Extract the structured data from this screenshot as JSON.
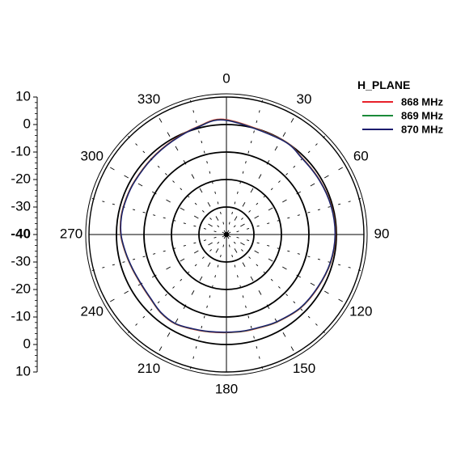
{
  "chart_data": {
    "type": "polar",
    "radial_min": -40,
    "radial_max": 10,
    "radial_step": 10,
    "radial_scale_labels": [
      "10",
      "0",
      "-10",
      "-20",
      "-30",
      "-40",
      "-30",
      "-20",
      "-10",
      "0",
      "10"
    ],
    "angle_labels": [
      "0",
      "30",
      "60",
      "90",
      "120",
      "150",
      "180",
      "210",
      "240",
      "270",
      "300",
      "330"
    ],
    "angle_direction": "clockwise",
    "angle_zero": "top",
    "legend": {
      "title": "H_PLANE",
      "position": "top-right"
    },
    "angles_deg": [
      0,
      30,
      45,
      60,
      75,
      90,
      105,
      120,
      135,
      150,
      160,
      170,
      180,
      190,
      200,
      210,
      220,
      230,
      240,
      250,
      260,
      270,
      280,
      290,
      300,
      315,
      330,
      345
    ],
    "series": [
      {
        "name": "868 MHz",
        "color": "#e8202a",
        "values": [
          1.8,
          0.0,
          -0.8,
          -0.7,
          -0.4,
          -0.3,
          -0.7,
          -1.5,
          -2.0,
          -3.2,
          -4.0,
          -4.2,
          -4.3,
          -4.0,
          -3.4,
          -2.5,
          -2.8,
          -3.8,
          -4.0,
          -3.5,
          -2.6,
          -1.5,
          -1.1,
          -1.2,
          -1.3,
          -1.2,
          -0.6,
          0.6
        ]
      },
      {
        "name": "869 MHz",
        "color": "#1a8a3a",
        "values": [
          1.6,
          -0.1,
          -0.9,
          -0.8,
          -0.5,
          -0.4,
          -0.8,
          -1.6,
          -2.1,
          -3.3,
          -4.1,
          -4.3,
          -4.4,
          -4.1,
          -3.5,
          -2.6,
          -2.9,
          -3.9,
          -4.1,
          -3.6,
          -2.7,
          -1.6,
          -1.2,
          -1.3,
          -1.4,
          -1.3,
          -0.7,
          0.5
        ]
      },
      {
        "name": "870 MHz",
        "color": "#1c1c6e",
        "values": [
          1.5,
          -0.2,
          -1.0,
          -0.9,
          -0.6,
          -0.5,
          -0.9,
          -1.7,
          -2.2,
          -3.4,
          -4.2,
          -4.4,
          -4.5,
          -4.2,
          -3.6,
          -2.7,
          -3.0,
          -4.0,
          -4.2,
          -3.7,
          -2.8,
          -1.7,
          -1.3,
          -1.4,
          -1.5,
          -1.4,
          -0.8,
          0.4
        ]
      }
    ]
  }
}
